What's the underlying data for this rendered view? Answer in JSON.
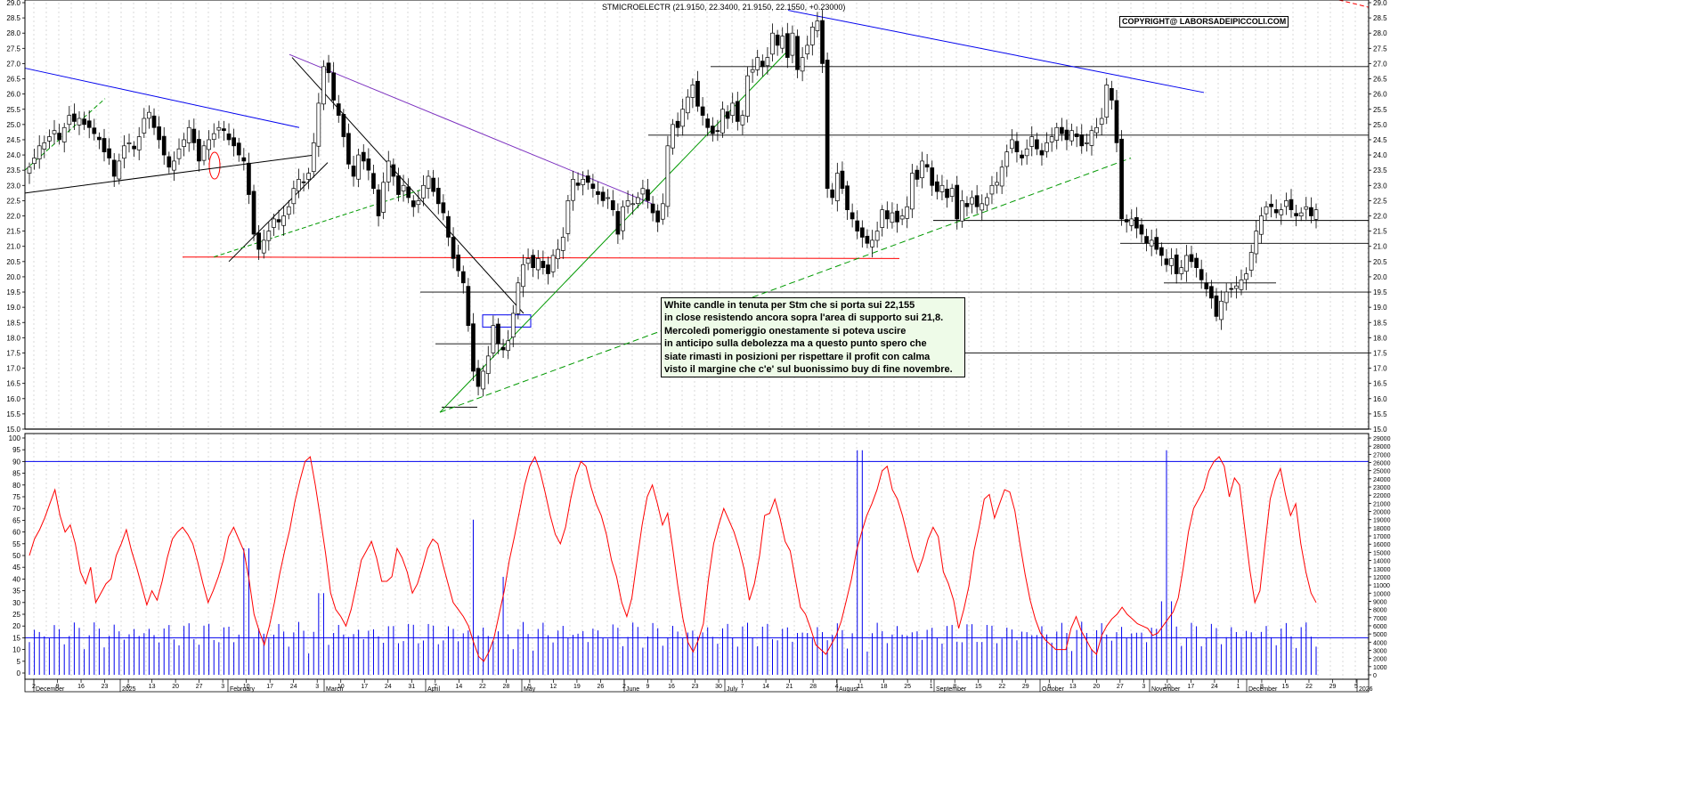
{
  "title": "STMICROELECTR (21.9150, 22.3400, 21.9150, 22.1550, +0.23000)",
  "copyright": "COPYRIGHT@ LABORSADEIPICCOLI.COM",
  "comment_lines": [
    "White candle in tenuta per Stm che si porta sui 22,155",
    "in close resistendo ancora sopra l'area di supporto sui 21,8.",
    "Mercoledì pomeriggio onestamente si poteva uscire",
    "in anticipo sulla debolezza ma a questo punto spero che",
    "siate rimasti in posizioni per rispettare il profit con calma",
    "visto il margine che c'e' sul buonissimo buy di fine novembre."
  ],
  "colors": {
    "candle_up": "#ffffff",
    "candle_down": "#000000",
    "trend_blue": "#0000ee",
    "trend_green": "#009900",
    "trend_purple": "#7b2fbf",
    "support_red": "#ff0000",
    "oscillator": "#ff0000",
    "volume": "#0000ee",
    "grid": "#c8c8c8"
  },
  "chart_data": [
    {
      "type": "candlestick",
      "series_label": "STMICROELECTR",
      "ylim": [
        15.0,
        29.0
      ],
      "y_ticks": [
        "15.0",
        "15.5",
        "16.0",
        "16.5",
        "17.0",
        "17.5",
        "18.0",
        "18.5",
        "19.0",
        "19.5",
        "20.0",
        "20.5",
        "21.0",
        "21.5",
        "22.0",
        "22.5",
        "23.0",
        "23.5",
        "24.0",
        "24.5",
        "25.0",
        "25.5",
        "26.0",
        "26.5",
        "27.0",
        "27.5",
        "28.0",
        "28.5",
        "29.0"
      ],
      "months": [
        "December",
        "2025",
        "February",
        "March",
        "April",
        "May",
        "June",
        "July",
        "August",
        "September",
        "October",
        "November",
        "December",
        "2026"
      ],
      "day_ticks": [
        "2",
        "9",
        "16",
        "23",
        "6",
        "13",
        "20",
        "27",
        "3",
        "10",
        "17",
        "24",
        "3",
        "10",
        "17",
        "24",
        "31",
        "7",
        "14",
        "22",
        "28",
        "5",
        "12",
        "19",
        "26",
        "2",
        "9",
        "16",
        "23",
        "30",
        "7",
        "14",
        "21",
        "28",
        "4",
        "11",
        "18",
        "25",
        "1",
        "8",
        "15",
        "22",
        "29",
        "6",
        "13",
        "20",
        "27",
        "3",
        "10",
        "17",
        "24",
        "1",
        "8",
        "15",
        "22",
        "29",
        "5"
      ],
      "close": [
        23.6,
        23.9,
        24.3,
        24.4,
        24.6,
        24.8,
        24.5,
        24.9,
        25.3,
        25.1,
        25.2,
        25.0,
        24.9,
        24.7,
        24.5,
        24.1,
        23.9,
        23.3,
        23.8,
        24.3,
        24.4,
        24.2,
        24.6,
        25.2,
        25.4,
        24.9,
        24.5,
        24.0,
        23.6,
        23.8,
        24.2,
        24.5,
        24.9,
        24.4,
        23.8,
        24.3,
        24.5,
        24.7,
        24.9,
        24.8,
        24.5,
        24.3,
        24.0,
        23.8,
        22.7,
        21.4,
        20.9,
        21.2,
        21.5,
        21.9,
        21.8,
        22.0,
        22.3,
        22.9,
        23.2,
        23.1,
        23.4,
        24.4,
        25.7,
        26.9,
        26.7,
        25.8,
        25.3,
        24.6,
        23.7,
        23.3,
        24.0,
        23.8,
        23.5,
        22.9,
        22.0,
        23.1,
        23.8,
        23.3,
        22.7,
        23.0,
        22.6,
        22.3,
        22.5,
        23.0,
        23.3,
        22.8,
        22.4,
        22.1,
        21.3,
        20.6,
        20.2,
        19.8,
        18.4,
        16.9,
        16.4,
        16.9,
        17.4,
        18.4,
        17.8,
        17.6,
        17.9,
        18.8,
        19.8,
        20.4,
        20.6,
        20.3,
        20.6,
        20.3,
        20.1,
        20.7,
        20.9,
        21.3,
        22.5,
        23.2,
        23.0,
        23.2,
        23.1,
        22.9,
        22.7,
        22.5,
        22.6,
        22.2,
        21.4,
        22.3,
        22.5,
        22.4,
        22.6,
        22.9,
        22.5,
        22.1,
        21.8,
        22.4,
        24.3,
        25.0,
        24.9,
        25.5,
        25.9,
        26.3,
        25.6,
        25.3,
        24.9,
        24.7,
        24.8,
        25.5,
        25.2,
        25.7,
        25.1,
        25.3,
        26.6,
        26.8,
        27.2,
        26.9,
        27.2,
        28.0,
        27.6,
        27.9,
        27.2,
        28.0,
        26.8,
        27.2,
        27.6,
        28.2,
        28.4,
        27.0,
        22.9,
        22.6,
        23.4,
        22.9,
        22.2,
        21.9,
        21.5,
        21.3,
        21.1,
        21.2,
        21.5,
        22.2,
        21.9,
        22.1,
        21.8,
        22.0,
        22.3,
        23.4,
        23.2,
        23.8,
        23.6,
        23.0,
        22.8,
        23.0,
        22.6,
        22.9,
        21.9,
        22.5,
        22.3,
        22.6,
        22.3,
        22.4,
        22.6,
        23.0,
        23.1,
        23.6,
        24.1,
        24.5,
        24.1,
        23.9,
        24.2,
        24.6,
        24.2,
        24.0,
        24.4,
        24.6,
        24.9,
        24.7,
        24.5,
        24.8,
        24.6,
        24.3,
        24.4,
        24.8,
        24.9,
        25.2,
        26.3,
        25.8,
        24.4,
        21.9,
        21.8,
        21.9,
        21.6,
        21.4,
        21.1,
        21.2,
        20.9,
        20.7,
        20.4,
        20.6,
        20.1,
        20.3,
        20.7,
        20.5,
        20.3,
        19.9,
        19.6,
        19.3,
        18.7,
        19.2,
        19.5,
        19.6,
        19.7,
        19.9,
        20.1,
        20.8,
        21.5,
        22.0,
        22.3,
        22.3,
        22.1,
        22.2,
        22.5,
        22.2,
        22.0,
        22.1,
        22.3,
        22.0,
        22.2
      ]
    },
    {
      "type": "line",
      "series_label": "oscillator",
      "ylim": [
        0,
        100
      ],
      "y_ticks": [
        "0",
        "5",
        "10",
        "15",
        "20",
        "25",
        "30",
        "35",
        "40",
        "45",
        "50",
        "55",
        "60",
        "65",
        "70",
        "75",
        "80",
        "85",
        "90",
        "95",
        "100"
      ],
      "levels": [
        15,
        90
      ],
      "values": [
        50,
        57,
        61,
        66,
        72,
        78,
        67,
        60,
        63,
        55,
        43,
        38,
        45,
        30,
        34,
        38,
        40,
        50,
        55,
        61,
        52,
        45,
        37,
        29,
        35,
        31,
        39,
        49,
        57,
        60,
        62,
        59,
        55,
        47,
        38,
        30,
        35,
        41,
        48,
        58,
        62,
        57,
        52,
        40,
        25,
        18,
        12,
        20,
        30,
        42,
        52,
        61,
        73,
        82,
        90,
        92,
        80,
        66,
        51,
        34,
        27,
        24,
        20,
        27,
        37,
        48,
        52,
        56,
        49,
        39,
        39,
        41,
        53,
        49,
        43,
        34,
        38,
        45,
        53,
        57,
        55,
        46,
        38,
        30,
        27,
        24,
        20,
        13,
        7,
        5,
        9,
        15,
        25,
        35,
        48,
        58,
        69,
        80,
        88,
        92,
        86,
        77,
        67,
        59,
        55,
        62,
        74,
        84,
        90,
        88,
        79,
        72,
        67,
        59,
        48,
        41,
        30,
        24,
        32,
        48,
        63,
        75,
        80,
        72,
        63,
        68,
        53,
        37,
        23,
        13,
        9,
        14,
        21,
        40,
        55,
        63,
        70,
        65,
        60,
        53,
        44,
        31,
        38,
        50,
        67,
        68,
        74,
        66,
        56,
        52,
        40,
        28,
        25,
        19,
        12,
        10,
        8,
        12,
        16,
        22,
        31,
        40,
        52,
        60,
        67,
        72,
        78,
        86,
        88,
        78,
        74,
        67,
        58,
        49,
        43,
        49,
        57,
        62,
        58,
        43,
        38,
        31,
        19,
        27,
        37,
        52,
        62,
        74,
        76,
        66,
        72,
        78,
        77,
        69,
        55,
        42,
        31,
        23,
        17,
        14,
        12,
        10,
        10,
        10,
        19,
        24,
        18,
        14,
        10,
        8,
        16,
        20,
        23,
        25,
        28,
        25,
        23,
        21,
        20,
        19,
        16,
        17,
        20,
        23,
        26,
        32,
        45,
        60,
        70,
        74,
        78,
        86,
        90,
        92,
        88,
        75,
        83,
        80,
        62,
        44,
        30,
        35,
        55,
        74,
        82,
        87,
        76,
        67,
        72,
        55,
        43,
        34,
        30
      ],
      "volume_ticks": [
        "0",
        "1000",
        "2000",
        "3000",
        "4000",
        "5000",
        "6000",
        "7000",
        "8000",
        "9000",
        "10000",
        "11000",
        "12000",
        "13000",
        "14000",
        "15000",
        "16000",
        "17000",
        "18000",
        "19000",
        "20000",
        "21000",
        "22000",
        "23000",
        "24000",
        "25000",
        "26000",
        "27000",
        "28000",
        "29000"
      ],
      "volume_max": 29000
    }
  ]
}
